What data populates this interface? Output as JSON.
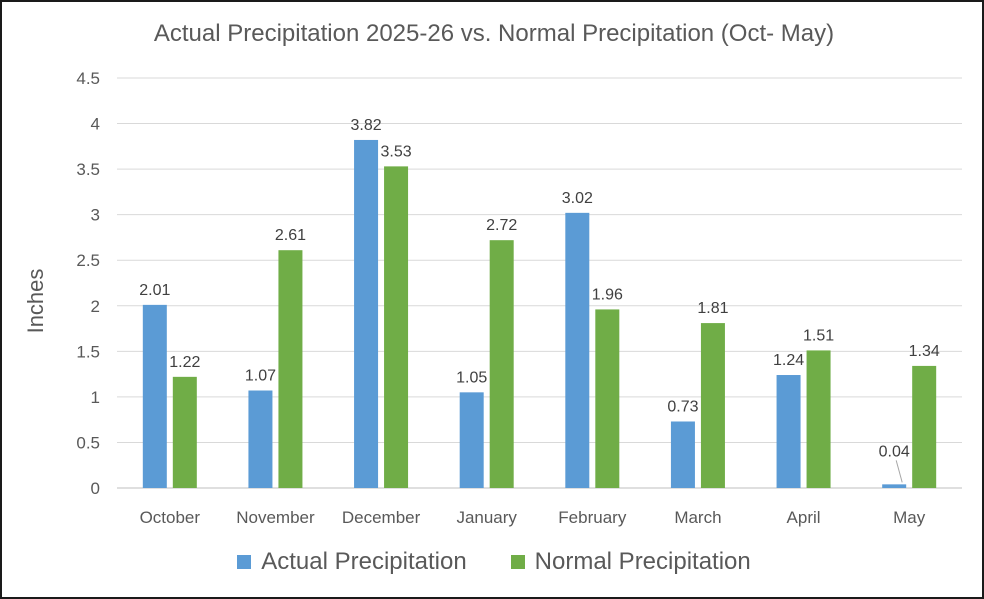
{
  "chart_data": {
    "type": "bar",
    "title": "Actual Precipitation 2025-26 vs. Normal Precipitation (Oct- May)",
    "xlabel": "",
    "ylabel": "Inches",
    "ylim": [
      0,
      4.5
    ],
    "yticks": [
      "0",
      "0.5",
      "1",
      "1.5",
      "2",
      "2.5",
      "3",
      "3.5",
      "4",
      "4.5"
    ],
    "categories": [
      "October",
      "November",
      "December",
      "January",
      "February",
      "March",
      "April",
      "May"
    ],
    "series": [
      {
        "name": "Actual Precipitation",
        "color": "#5b9bd5",
        "values": [
          2.01,
          1.07,
          3.82,
          1.05,
          3.02,
          0.73,
          1.24,
          0.04
        ],
        "labels": [
          "2.01",
          "1.07",
          "3.82",
          "1.05",
          "3.02",
          "0.73",
          "1.24",
          "0.04"
        ]
      },
      {
        "name": "Normal Precipitation",
        "color": "#70ad47",
        "values": [
          1.22,
          2.61,
          3.53,
          2.72,
          1.96,
          1.81,
          1.51,
          1.34
        ],
        "labels": [
          "1.22",
          "2.61",
          "3.53",
          "2.72",
          "1.96",
          "1.81",
          "1.51",
          "1.34"
        ]
      }
    ],
    "grid": true,
    "legend": "bottom"
  }
}
